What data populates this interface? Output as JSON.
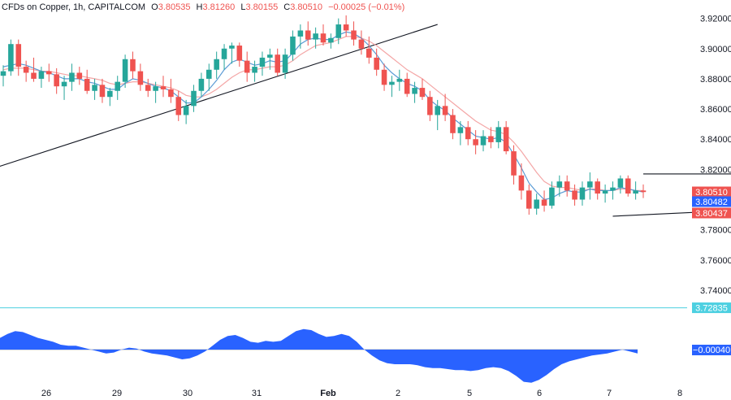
{
  "legend": {
    "symbol": "CFDs on Copper, 1h, CAPITALCOM",
    "open_label": "O",
    "open": "3.80535",
    "high_label": "H",
    "high": "3.81260",
    "low_label": "L",
    "low": "3.80155",
    "close_label": "C",
    "close": "3.80510",
    "change": "−0.00025 (−0.01%)"
  },
  "colors": {
    "up": "#26a69a",
    "down": "#ef5350",
    "fast_ma": "#5b9bd5",
    "slow_ma": "#f4a6a6",
    "osc_fill": "#2962ff",
    "baseline": "#4dd0e1"
  },
  "price_tags": [
    {
      "value": "3.80510",
      "color": "#ef5350"
    },
    {
      "value": "3.80482",
      "color": "#2962ff"
    },
    {
      "value": "3.80437",
      "color": "#ef5350"
    },
    {
      "value": "3.72835",
      "color": "#4dd0e1"
    }
  ],
  "oscillator_tag": {
    "value": "−0.00040",
    "color": "#2962ff"
  },
  "chart_data": {
    "type": "candlestick",
    "y_ticks": [
      3.92,
      3.9,
      3.88,
      3.86,
      3.84,
      3.82,
      3.8,
      3.78,
      3.76,
      3.74
    ],
    "y_tick_labels": [
      "3.92000",
      "3.90000",
      "3.88000",
      "3.86000",
      "3.84000",
      "3.82000",
      "3.80000",
      "3.78000",
      "3.76000",
      "3.74000"
    ],
    "ylim": [
      3.7265,
      3.9268
    ],
    "x_labels": [
      "26",
      "29",
      "30",
      "31",
      "Feb",
      "2",
      "5",
      "6",
      "7",
      "8"
    ],
    "ohlc": [
      [
        3.882,
        3.889,
        3.875,
        3.885
      ],
      [
        3.885,
        3.906,
        3.882,
        3.903
      ],
      [
        3.903,
        3.906,
        3.882,
        3.888
      ],
      [
        3.888,
        3.892,
        3.878,
        3.884
      ],
      [
        3.884,
        3.894,
        3.878,
        3.88
      ],
      [
        3.88,
        3.888,
        3.874,
        3.885
      ],
      [
        3.885,
        3.89,
        3.878,
        3.883
      ],
      [
        3.883,
        3.887,
        3.87,
        3.875
      ],
      [
        3.875,
        3.882,
        3.866,
        3.878
      ],
      [
        3.878,
        3.89,
        3.872,
        3.884
      ],
      [
        3.884,
        3.888,
        3.876,
        3.88
      ],
      [
        3.88,
        3.886,
        3.87,
        3.872
      ],
      [
        3.872,
        3.88,
        3.866,
        3.876
      ],
      [
        3.876,
        3.88,
        3.864,
        3.868
      ],
      [
        3.868,
        3.874,
        3.862,
        3.872
      ],
      [
        3.872,
        3.882,
        3.866,
        3.878
      ],
      [
        3.878,
        3.896,
        3.874,
        3.893
      ],
      [
        3.893,
        3.898,
        3.88,
        3.885
      ],
      [
        3.885,
        3.89,
        3.872,
        3.876
      ],
      [
        3.876,
        3.88,
        3.868,
        3.872
      ],
      [
        3.872,
        3.878,
        3.864,
        3.875
      ],
      [
        3.875,
        3.882,
        3.868,
        3.873
      ],
      [
        3.873,
        3.88,
        3.864,
        3.868
      ],
      [
        3.868,
        3.872,
        3.852,
        3.856
      ],
      [
        3.856,
        3.866,
        3.85,
        3.862
      ],
      [
        3.862,
        3.876,
        3.858,
        3.872
      ],
      [
        3.872,
        3.884,
        3.868,
        3.88
      ],
      [
        3.88,
        3.89,
        3.872,
        3.886
      ],
      [
        3.886,
        3.898,
        3.88,
        3.893
      ],
      [
        3.893,
        3.903,
        3.886,
        3.9
      ],
      [
        3.9,
        3.904,
        3.89,
        3.902
      ],
      [
        3.902,
        3.904,
        3.888,
        3.892
      ],
      [
        3.892,
        3.898,
        3.878,
        3.884
      ],
      [
        3.884,
        3.892,
        3.878,
        3.888
      ],
      [
        3.888,
        3.898,
        3.882,
        3.894
      ],
      [
        3.894,
        3.9,
        3.886,
        3.896
      ],
      [
        3.896,
        3.9,
        3.882,
        3.884
      ],
      [
        3.884,
        3.9,
        3.88,
        3.896
      ],
      [
        3.896,
        3.912,
        3.892,
        3.908
      ],
      [
        3.908,
        3.916,
        3.9,
        3.912
      ],
      [
        3.912,
        3.918,
        3.902,
        3.906
      ],
      [
        3.906,
        3.914,
        3.9,
        3.91
      ],
      [
        3.91,
        3.916,
        3.902,
        3.904
      ],
      [
        3.904,
        3.91,
        3.9,
        3.907
      ],
      [
        3.907,
        3.92,
        3.903,
        3.916
      ],
      [
        3.916,
        3.922,
        3.908,
        3.912
      ],
      [
        3.912,
        3.918,
        3.902,
        3.906
      ],
      [
        3.906,
        3.912,
        3.896,
        3.9
      ],
      [
        3.9,
        3.908,
        3.89,
        3.894
      ],
      [
        3.894,
        3.9,
        3.882,
        3.886
      ],
      [
        3.886,
        3.89,
        3.872,
        3.876
      ],
      [
        3.876,
        3.882,
        3.868,
        3.878
      ],
      [
        3.878,
        3.886,
        3.872,
        3.88
      ],
      [
        3.88,
        3.884,
        3.868,
        3.87
      ],
      [
        3.87,
        3.878,
        3.864,
        3.874
      ],
      [
        3.874,
        3.88,
        3.866,
        3.868
      ],
      [
        3.868,
        3.872,
        3.852,
        3.856
      ],
      [
        3.856,
        3.866,
        3.846,
        3.862
      ],
      [
        3.862,
        3.87,
        3.852,
        3.856
      ],
      [
        3.856,
        3.86,
        3.84,
        3.844
      ],
      [
        3.844,
        3.852,
        3.836,
        3.848
      ],
      [
        3.848,
        3.852,
        3.836,
        3.84
      ],
      [
        3.84,
        3.846,
        3.83,
        3.836
      ],
      [
        3.836,
        3.846,
        3.832,
        3.842
      ],
      [
        3.842,
        3.848,
        3.834,
        3.838
      ],
      [
        3.838,
        3.852,
        3.834,
        3.848
      ],
      [
        3.848,
        3.852,
        3.83,
        3.832
      ],
      [
        3.832,
        3.836,
        3.81,
        3.816
      ],
      [
        3.816,
        3.824,
        3.8,
        3.806
      ],
      [
        3.806,
        3.81,
        3.79,
        3.794
      ],
      [
        3.794,
        3.804,
        3.79,
        3.8
      ],
      [
        3.8,
        3.806,
        3.792,
        3.796
      ],
      [
        3.796,
        3.812,
        3.794,
        3.808
      ],
      [
        3.808,
        3.816,
        3.802,
        3.812
      ],
      [
        3.812,
        3.816,
        3.802,
        3.806
      ],
      [
        3.806,
        3.81,
        3.796,
        3.8
      ],
      [
        3.8,
        3.812,
        3.796,
        3.808
      ],
      [
        3.808,
        3.818,
        3.8,
        3.812
      ],
      [
        3.812,
        3.814,
        3.8,
        3.804
      ],
      [
        3.804,
        3.81,
        3.798,
        3.806
      ],
      [
        3.806,
        3.812,
        3.8,
        3.808
      ],
      [
        3.808,
        3.816,
        3.804,
        3.814
      ],
      [
        3.814,
        3.816,
        3.802,
        3.804
      ],
      [
        3.804,
        3.812,
        3.8,
        3.806
      ],
      [
        3.806,
        3.81,
        3.801,
        3.805
      ]
    ],
    "ma_fast": [
      3.888,
      3.889,
      3.89,
      3.889,
      3.887,
      3.885,
      3.884,
      3.882,
      3.88,
      3.88,
      3.88,
      3.878,
      3.877,
      3.875,
      3.873,
      3.873,
      3.877,
      3.88,
      3.879,
      3.877,
      3.875,
      3.874,
      3.872,
      3.868,
      3.864,
      3.864,
      3.868,
      3.873,
      3.879,
      3.886,
      3.891,
      3.893,
      3.891,
      3.889,
      3.89,
      3.892,
      3.891,
      3.892,
      3.897,
      3.903,
      3.906,
      3.907,
      3.906,
      3.906,
      3.909,
      3.911,
      3.91,
      3.907,
      3.902,
      3.896,
      3.889,
      3.884,
      3.88,
      3.877,
      3.875,
      3.872,
      3.866,
      3.862,
      3.859,
      3.854,
      3.85,
      3.846,
      3.842,
      3.841,
      3.84,
      3.841,
      3.838,
      3.83,
      3.821,
      3.811,
      3.805,
      3.8,
      3.801,
      3.804,
      3.806,
      3.805,
      3.805,
      3.807,
      3.806,
      3.806,
      3.806,
      3.808,
      3.807,
      3.806,
      3.805
    ],
    "ma_slow": [
      3.886,
      3.887,
      3.887,
      3.887,
      3.886,
      3.885,
      3.885,
      3.884,
      3.883,
      3.882,
      3.882,
      3.881,
      3.88,
      3.879,
      3.877,
      3.876,
      3.877,
      3.878,
      3.878,
      3.877,
      3.876,
      3.875,
      3.874,
      3.872,
      3.869,
      3.868,
      3.868,
      3.87,
      3.873,
      3.877,
      3.881,
      3.884,
      3.886,
      3.886,
      3.887,
      3.888,
      3.888,
      3.889,
      3.892,
      3.896,
      3.899,
      3.902,
      3.903,
      3.904,
      3.906,
      3.908,
      3.908,
      3.907,
      3.905,
      3.902,
      3.898,
      3.894,
      3.89,
      3.886,
      3.883,
      3.88,
      3.876,
      3.872,
      3.868,
      3.864,
      3.86,
      3.856,
      3.852,
      3.849,
      3.846,
      3.845,
      3.843,
      3.838,
      3.832,
      3.825,
      3.818,
      3.812,
      3.809,
      3.808,
      3.808,
      3.807,
      3.806,
      3.807,
      3.807,
      3.806,
      3.806,
      3.807,
      3.807,
      3.806,
      3.806
    ],
    "trendlines": [
      {
        "name": "rising-support",
        "points": [
          [
            -0.5,
            3.822
          ],
          [
            21,
            3.848
          ],
          [
            57,
            3.916
          ]
        ]
      },
      {
        "name": "range-top",
        "points": [
          [
            84,
            3.817
          ],
          [
            101,
            3.817
          ]
        ]
      },
      {
        "name": "range-bottom",
        "points": [
          [
            80,
            3.789
          ],
          [
            101,
            3.794
          ]
        ]
      }
    ],
    "oscillator": [
      0.0012,
      0.0016,
      0.0019,
      0.0018,
      0.0015,
      0.0012,
      0.001,
      0.0008,
      0.0005,
      0.0004,
      0.0004,
      0.0002,
      0.0,
      -0.0002,
      -0.0004,
      -0.0003,
      0.0,
      0.0002,
      0.0001,
      -0.0002,
      -0.0004,
      -0.0005,
      -0.0006,
      -0.0008,
      -0.001,
      -0.0009,
      -0.0006,
      -0.0002,
      0.0004,
      0.001,
      0.0014,
      0.0015,
      0.0012,
      0.0008,
      0.0007,
      0.0009,
      0.0008,
      0.0009,
      0.0014,
      0.0019,
      0.0021,
      0.002,
      0.0016,
      0.0013,
      0.0014,
      0.0016,
      0.0014,
      0.0008,
      0.0,
      -0.0006,
      -0.0011,
      -0.0014,
      -0.0015,
      -0.0015,
      -0.0015,
      -0.0016,
      -0.0018,
      -0.0019,
      -0.0019,
      -0.002,
      -0.0021,
      -0.0021,
      -0.0022,
      -0.0021,
      -0.0019,
      -0.0018,
      -0.0019,
      -0.0022,
      -0.0027,
      -0.0033,
      -0.0034,
      -0.0031,
      -0.0026,
      -0.002,
      -0.0015,
      -0.0012,
      -0.001,
      -0.0008,
      -0.0006,
      -0.0005,
      -0.0004,
      -0.0002,
      0.0,
      -0.0002,
      -0.0004
    ]
  }
}
